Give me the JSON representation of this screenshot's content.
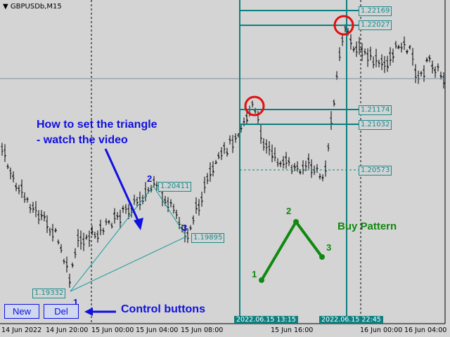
{
  "chart_header": {
    "symbol_timeframe": "GBPUSDb,M15",
    "menu_icon": "triangle-down-icon"
  },
  "time_axis": [
    "14 Jun 2022",
    "14 Jun 20:00",
    "15 Jun 00:00",
    "15 Jun 04:00",
    "15 Jun 08:00",
    "15 Jun 16:00",
    "16 Jun 00:00",
    "16 Jun 04:00"
  ],
  "time_badges": [
    "2022.06.15 13:15",
    "2022.06.15 22:45"
  ],
  "price_levels": [
    "1.22169",
    "1.22027",
    "1.21174",
    "1.21032",
    "1.20573"
  ],
  "triangle": {
    "points": [
      "1",
      "2",
      "3"
    ],
    "prices": [
      "1.19332",
      "1.20411",
      "1.19895"
    ]
  },
  "annotations": {
    "instruction_line1": "How to set the triangle",
    "instruction_line2": "- watch the video",
    "control_label": "Control buttons",
    "pattern_label": "Buy Pattern",
    "pattern_points": [
      "1",
      "2",
      "3"
    ]
  },
  "buttons": {
    "new": "New",
    "del": "Del"
  },
  "colors": {
    "background": "#d4d4d4",
    "teal": "#0e7f7f",
    "annotation_blue": "#1010e0",
    "pattern_green": "#118811",
    "highlight_red": "#e01010"
  }
}
